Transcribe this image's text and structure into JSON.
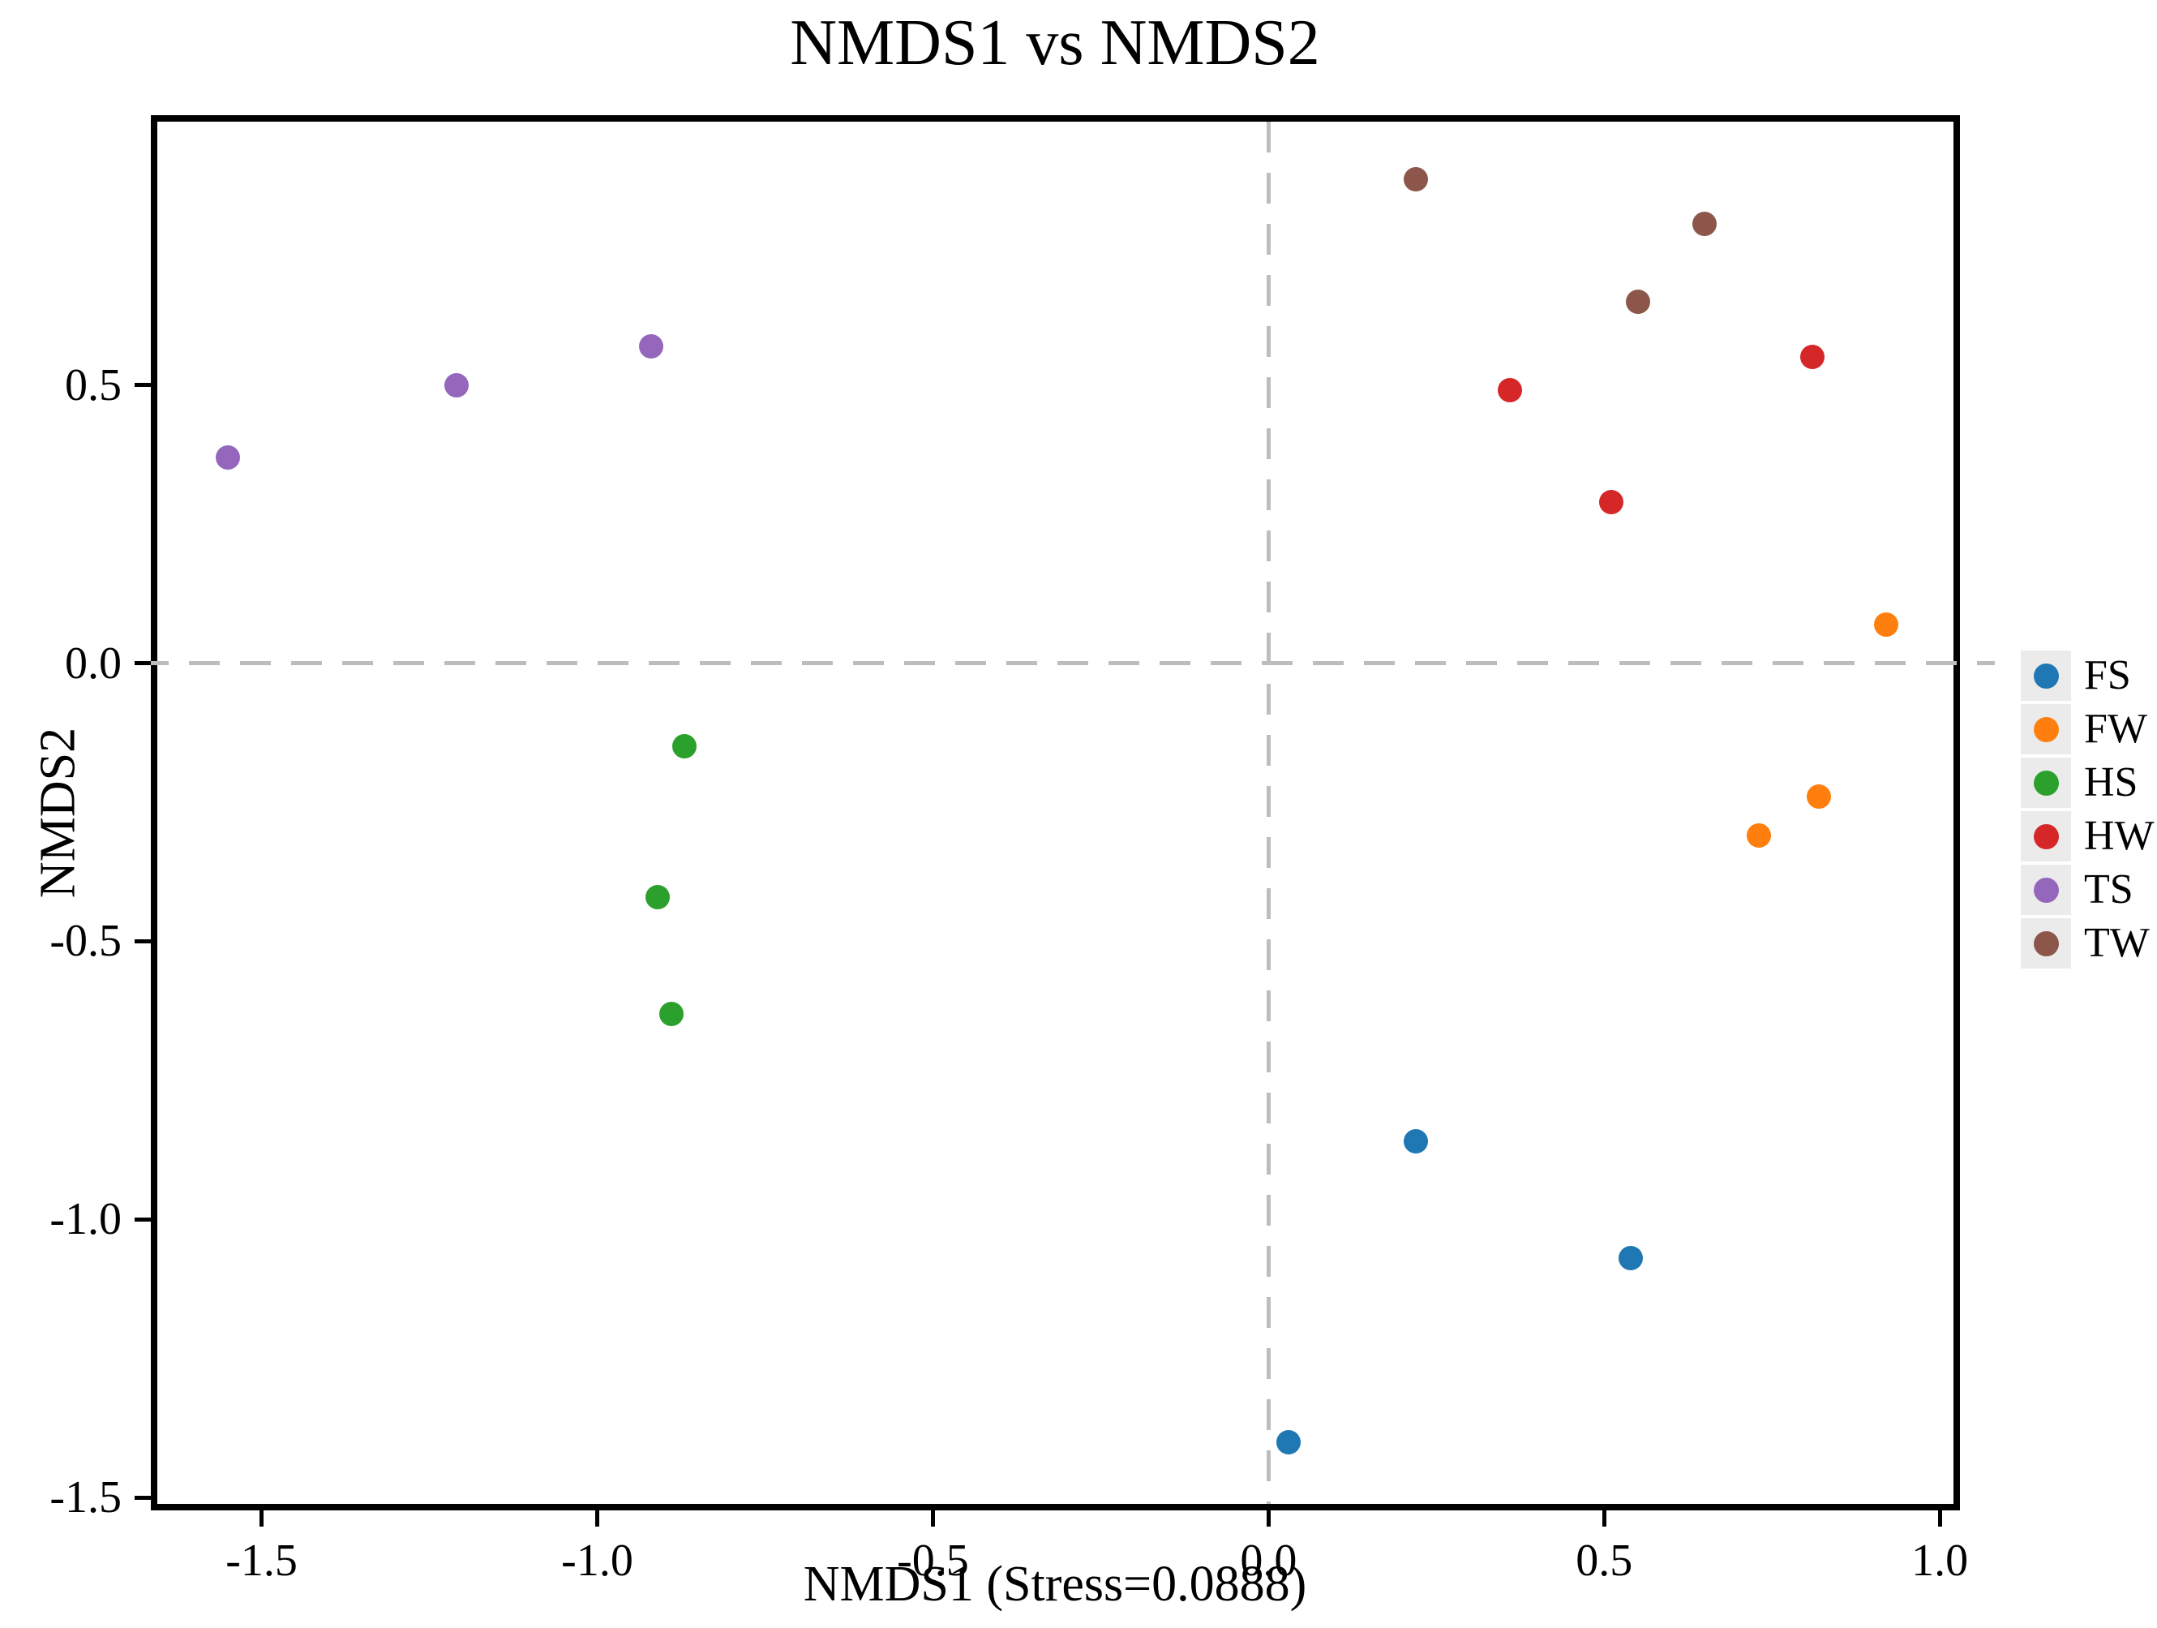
{
  "figure": {
    "background": "#ffffff",
    "frame_color": "#000000"
  },
  "chart_data": {
    "type": "scatter",
    "title": "NMDS1 vs NMDS2",
    "xlabel": "NMDS1 (Stress=0.0888)",
    "ylabel": "NMDS2",
    "stress": "0.0888",
    "xlim": [
      -1.665,
      1.03
    ],
    "ylim": [
      -1.523,
      0.985
    ],
    "x_ticks": [
      -1.5,
      -1.0,
      -0.5,
      0.0,
      0.5,
      1.0
    ],
    "x_tick_labels": [
      "-1.5",
      "-1.0",
      "-0.5",
      "0.0",
      "0.5",
      "1.0"
    ],
    "y_ticks": [
      0.5,
      0.0,
      -0.5,
      -1.0,
      -1.5
    ],
    "y_tick_labels": [
      "0.5",
      "0.0",
      "-0.5",
      "-1.0",
      "-1.5"
    ],
    "grid": false,
    "legend_position": "right-outside",
    "reference_lines": [
      {
        "axis": "y",
        "value": 0.0,
        "style": "dashed",
        "color": "#bdbdbd"
      },
      {
        "axis": "x",
        "value": 0.0,
        "style": "dashed",
        "color": "#bdbdbd"
      }
    ],
    "series": [
      {
        "name": "FS",
        "color": "#1f77b4",
        "points": [
          [
            0.22,
            -0.86
          ],
          [
            0.54,
            -1.07
          ],
          [
            0.03,
            -1.4
          ]
        ]
      },
      {
        "name": "FW",
        "color": "#ff7f0e",
        "points": [
          [
            0.92,
            0.07
          ],
          [
            0.82,
            -0.24
          ],
          [
            0.73,
            -0.31
          ]
        ]
      },
      {
        "name": "HS",
        "color": "#2ca02c",
        "points": [
          [
            -0.87,
            -0.15
          ],
          [
            -0.91,
            -0.42
          ],
          [
            -0.89,
            -0.63
          ]
        ]
      },
      {
        "name": "HW",
        "color": "#d62728",
        "points": [
          [
            0.36,
            0.49
          ],
          [
            0.81,
            0.55
          ],
          [
            0.51,
            0.29
          ]
        ]
      },
      {
        "name": "TS",
        "color": "#9467bd",
        "points": [
          [
            -1.55,
            0.37
          ],
          [
            -1.21,
            0.5
          ],
          [
            -0.92,
            0.57
          ]
        ]
      },
      {
        "name": "TW",
        "color": "#8c564b",
        "points": [
          [
            0.22,
            0.87
          ],
          [
            0.65,
            0.79
          ],
          [
            0.55,
            0.65
          ]
        ]
      }
    ]
  }
}
